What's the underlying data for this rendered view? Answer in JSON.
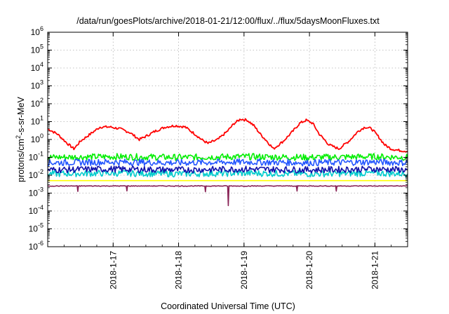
{
  "chart_data": {
    "type": "line",
    "title": "/data/run/goesPlots/archive/2018-01-21/12:00/flux/../flux/5daysMoonFluxes.txt",
    "xlabel": "Coordinated Universal Time (UTC)",
    "ylabel": "protons/cm2-s-sr-MeV",
    "ylabel_parts": [
      "protons/cm",
      "2",
      "-s-sr-MeV"
    ],
    "yscale": "log",
    "ylim": [
      1e-06,
      1000000.0
    ],
    "xlim": [
      0,
      5.5
    ],
    "grid": true,
    "y_ticks": [
      {
        "value": 1e-06,
        "base": "10",
        "exp": "-6"
      },
      {
        "value": 1e-05,
        "base": "10",
        "exp": "-5"
      },
      {
        "value": 0.0001,
        "base": "10",
        "exp": "-4"
      },
      {
        "value": 0.001,
        "base": "10",
        "exp": "-3"
      },
      {
        "value": 0.01,
        "base": "10",
        "exp": "-2"
      },
      {
        "value": 0.1,
        "base": "10",
        "exp": "-1"
      },
      {
        "value": 1,
        "base": "10",
        "exp": "0"
      },
      {
        "value": 10,
        "base": "10",
        "exp": "1"
      },
      {
        "value": 100,
        "base": "10",
        "exp": "2"
      },
      {
        "value": 1000,
        "base": "10",
        "exp": "3"
      },
      {
        "value": 10000,
        "base": "10",
        "exp": "4"
      },
      {
        "value": 100000,
        "base": "10",
        "exp": "5"
      },
      {
        "value": 1000000,
        "base": "10",
        "exp": "6"
      }
    ],
    "x_ticks": [
      {
        "value": 1,
        "label": "2018-1-17"
      },
      {
        "value": 2,
        "label": "2018-1-18"
      },
      {
        "value": 3,
        "label": "2018-1-19"
      },
      {
        "value": 4,
        "label": "2018-1-20"
      },
      {
        "value": 5,
        "label": "2018-1-21"
      }
    ],
    "series": [
      {
        "color": "#ff0000",
        "x": [
          0,
          0.15,
          0.3,
          0.4,
          0.5,
          0.65,
          0.8,
          0.95,
          1.1,
          1.25,
          1.4,
          1.5,
          1.65,
          1.8,
          1.95,
          2.1,
          2.25,
          2.35,
          2.45,
          2.6,
          2.75,
          2.85,
          2.95,
          3.05,
          3.15,
          3.25,
          3.35,
          3.45,
          3.6,
          3.75,
          3.85,
          3.95,
          4.05,
          4.15,
          4.3,
          4.45,
          4.6,
          4.75,
          4.85,
          4.95,
          5.05,
          5.15,
          5.25,
          5.35,
          5.5
        ],
        "y": [
          4,
          2,
          0.6,
          0.3,
          0.8,
          2,
          5,
          5,
          4,
          2.5,
          1,
          1.5,
          3,
          5,
          6,
          5,
          2,
          1,
          0.6,
          1,
          3,
          8,
          14,
          12,
          6,
          2,
          0.8,
          0.3,
          0.8,
          3,
          8,
          12,
          8,
          2,
          0.5,
          0.3,
          0.8,
          3,
          5,
          4,
          1.5,
          0.5,
          0.3,
          0.25,
          0.22
        ]
      },
      {
        "color": "#00ee00",
        "x": [
          0,
          1,
          2,
          3,
          4,
          5,
          5.5
        ],
        "y": [
          0.1,
          0.11,
          0.1,
          0.11,
          0.1,
          0.11,
          0.1
        ]
      },
      {
        "color": "#00cccc",
        "x": [
          0,
          1,
          2,
          3,
          4,
          5,
          5.5
        ],
        "y": [
          0.012,
          0.013,
          0.012,
          0.013,
          0.012,
          0.013,
          0.012
        ]
      },
      {
        "color": "#2255ff",
        "x": [
          0,
          1,
          2,
          3,
          4,
          5,
          5.5
        ],
        "y": [
          0.05,
          0.055,
          0.05,
          0.055,
          0.05,
          0.055,
          0.05
        ]
      },
      {
        "color": "#1111aa",
        "x": [
          0,
          1,
          2,
          3,
          4,
          5,
          5.5
        ],
        "y": [
          0.02,
          0.022,
          0.02,
          0.022,
          0.02,
          0.022,
          0.02
        ]
      },
      {
        "color": "#ffff00",
        "x": [
          0,
          1,
          2,
          3,
          4,
          5,
          5.5
        ],
        "y": [
          0.005,
          0.005,
          0.005,
          0.005,
          0.005,
          0.005,
          0.005
        ]
      },
      {
        "color": "#882255",
        "x": [
          0,
          0.45,
          0.46,
          0.47,
          1.2,
          1.21,
          1.22,
          2.4,
          2.41,
          2.42,
          2.75,
          2.76,
          2.77,
          3.8,
          3.81,
          3.82,
          4.4,
          4.41,
          4.42,
          5.5
        ],
        "y": [
          0.0025,
          0.0025,
          0.0012,
          0.0025,
          0.0025,
          0.0013,
          0.0025,
          0.0025,
          0.0012,
          0.0025,
          0.0025,
          0.0002,
          0.0025,
          0.0025,
          0.0013,
          0.0025,
          0.0025,
          0.0013,
          0.0025,
          0.0025
        ]
      }
    ]
  }
}
